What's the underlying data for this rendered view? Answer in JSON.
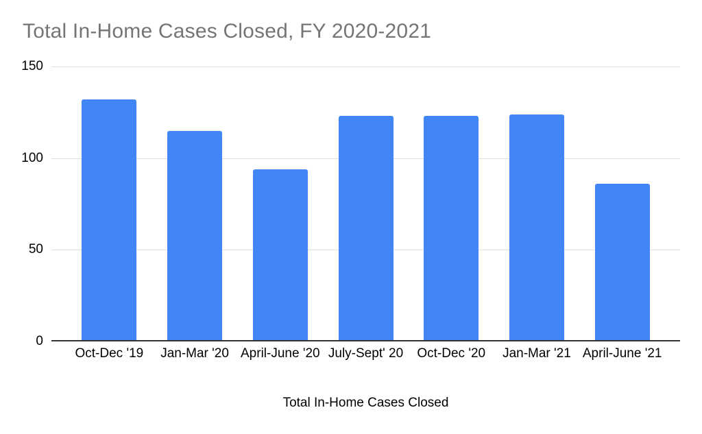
{
  "chart_data": {
    "type": "bar",
    "title": "Total In-Home Cases Closed, FY 2020-2021",
    "categories": [
      "Oct-Dec '19",
      "Jan-Mar '20",
      "April-June '20",
      "July-Sept' 20",
      "Oct-Dec '20",
      "Jan-Mar '21",
      "April-June '21"
    ],
    "values": [
      132,
      115,
      94,
      123,
      123,
      124,
      86
    ],
    "xlabel": "Total In-Home Cases Closed",
    "ylabel": "",
    "ylim": [
      0,
      150
    ],
    "yticks": [
      0,
      50,
      100,
      150
    ],
    "grid": true,
    "legend": "none",
    "colors": {
      "bar": "#4285f4",
      "title_text": "#757575",
      "gridline": "#e0e0e0",
      "axis_line": "#333333",
      "label_text": "#000000",
      "background": "#ffffff"
    }
  }
}
